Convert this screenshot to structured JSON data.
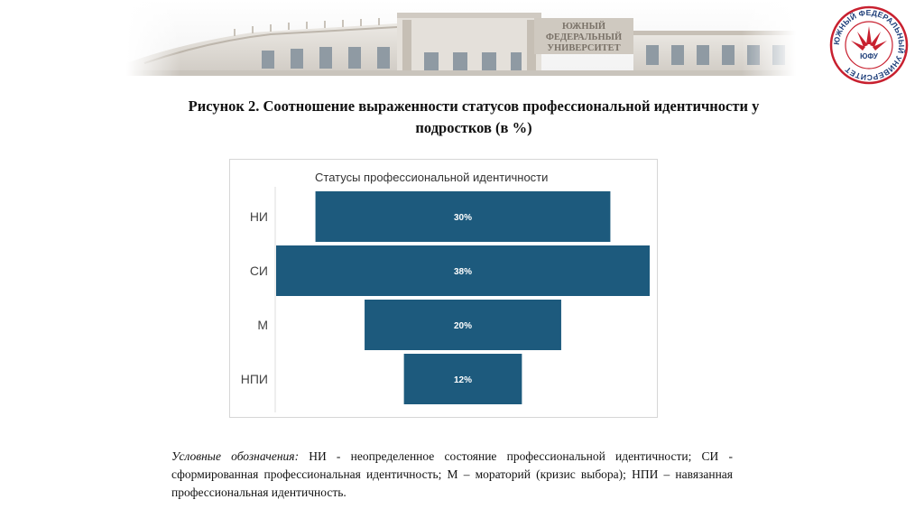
{
  "banner": {
    "building_sign": [
      "ЮЖНЫЙ",
      "ФЕДЕРАЛЬНЫЙ",
      "УНИВЕРСИТЕТ"
    ]
  },
  "logo": {
    "ring_text": "ЮЖНЫЙ ФЕДЕРАЛЬНЫЙ УНИВЕРСИТЕТ",
    "abbr": "ЮФУ",
    "color": "#c8202f"
  },
  "caption": {
    "line1": "Рисунок 2. Соотношение выраженности статусов профессиональной идентичности у",
    "line2": "подростков (в %)"
  },
  "chart_data": {
    "type": "bar",
    "orientation": "horizontal-centered",
    "title": "Статусы профессиональной идентичности",
    "categories": [
      "НИ",
      "СИ",
      "М",
      "НПИ"
    ],
    "values": [
      30,
      38,
      20,
      12
    ],
    "labels": [
      "30%",
      "38%",
      "20%",
      "12%"
    ],
    "unit": "%",
    "bar_color": "#1d5a7d",
    "grid": false,
    "legend": "none"
  },
  "legend": {
    "lead": "Условные обозначения:",
    "text": " НИ - неопределенное состояние профессиональной идентичности; СИ - сформированная профессиональная идентичность; М – мораторий (кризис выбора); НПИ – навязанная профессиональная идентичность."
  }
}
